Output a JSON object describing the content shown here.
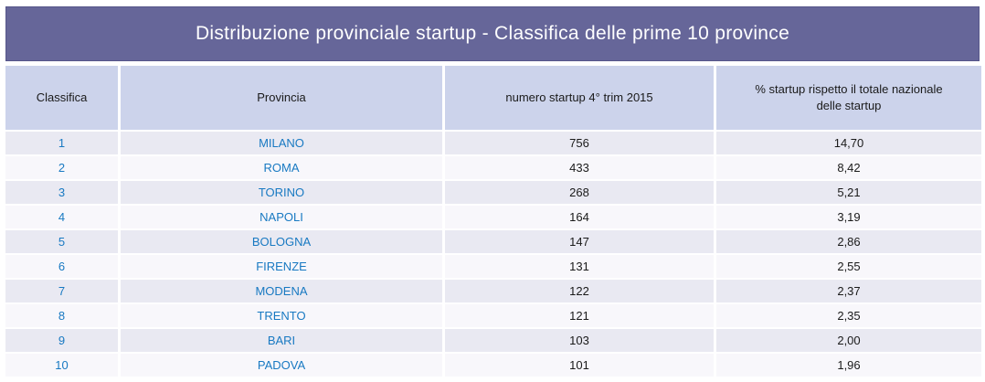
{
  "title": "Distribuzione provinciale startup - Classifica delle prime 10 province",
  "colors": {
    "title_bar": "#666699",
    "title_text": "#FFFFFF",
    "header_bg": "#CCD3EB",
    "row_odd_bg": "#E9E9F2",
    "row_even_bg": "#F8F7FB",
    "accent_blue": "#1879C2",
    "text_dark": "#1A1A1A"
  },
  "table": {
    "headers": [
      "Classifica",
      "Provincia",
      "numero startup 4° trim 2015",
      "% startup rispetto il totale nazionale delle startup"
    ],
    "rows": [
      {
        "rank": "1",
        "province": "MILANO",
        "count": "756",
        "pct": "14,70"
      },
      {
        "rank": "2",
        "province": "ROMA",
        "count": "433",
        "pct": "8,42"
      },
      {
        "rank": "3",
        "province": "TORINO",
        "count": "268",
        "pct": "5,21"
      },
      {
        "rank": "4",
        "province": "NAPOLI",
        "count": "164",
        "pct": "3,19"
      },
      {
        "rank": "5",
        "province": "BOLOGNA",
        "count": "147",
        "pct": "2,86"
      },
      {
        "rank": "6",
        "province": "FIRENZE",
        "count": "131",
        "pct": "2,55"
      },
      {
        "rank": "7",
        "province": "MODENA",
        "count": "122",
        "pct": "2,37"
      },
      {
        "rank": "8",
        "province": "TRENTO",
        "count": "121",
        "pct": "2,35"
      },
      {
        "rank": "9",
        "province": "BARI",
        "count": "103",
        "pct": "2,00"
      },
      {
        "rank": "10",
        "province": "PADOVA",
        "count": "101",
        "pct": "1,96"
      }
    ]
  },
  "chart_data": {
    "type": "table",
    "title": "Distribuzione provinciale startup - Classifica delle prime 10 province",
    "columns": [
      "Classifica",
      "Provincia",
      "numero startup 4° trim 2015",
      "% startup rispetto il totale nazionale delle startup"
    ],
    "rows": [
      [
        "1",
        "MILANO",
        756,
        "14,70"
      ],
      [
        "2",
        "ROMA",
        433,
        "8,42"
      ],
      [
        "3",
        "TORINO",
        268,
        "5,21"
      ],
      [
        "4",
        "NAPOLI",
        164,
        "3,19"
      ],
      [
        "5",
        "BOLOGNA",
        147,
        "2,86"
      ],
      [
        "6",
        "FIRENZE",
        131,
        "2,55"
      ],
      [
        "7",
        "MODENA",
        122,
        "2,37"
      ],
      [
        "8",
        "TRENTO",
        121,
        "2,35"
      ],
      [
        "9",
        "BARI",
        103,
        "2,00"
      ],
      [
        "10",
        "PADOVA",
        101,
        "1,96"
      ]
    ]
  }
}
